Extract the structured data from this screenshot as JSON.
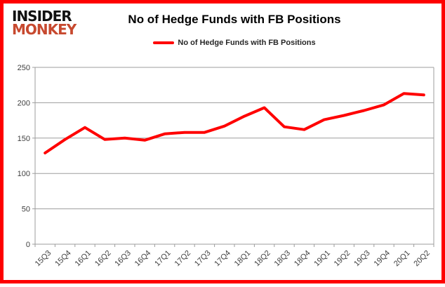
{
  "branding": {
    "logo_line1": "INSIDER",
    "logo_line2": "MONKEY",
    "logo_color_primary": "#111111",
    "logo_color_secondary": "#c7492f"
  },
  "title": "No of Hedge Funds with FB Positions",
  "legend": {
    "label": "No of Hedge Funds with FB Positions",
    "swatch_color": "#ff0000"
  },
  "colors": {
    "frame_border": "#fe0000",
    "line": "#ff0000",
    "grid": "#9d9d9d",
    "axis": "#9d9d9d",
    "tick_label": "#3f3f3f"
  },
  "chart_data": {
    "type": "line",
    "title": "No of Hedge Funds with FB Positions",
    "categories": [
      "15Q3",
      "15Q4",
      "16Q1",
      "16Q2",
      "16Q3",
      "16Q4",
      "17Q1",
      "17Q2",
      "17Q3",
      "17Q4",
      "18Q1",
      "18Q2",
      "18Q3",
      "18Q4",
      "19Q1",
      "19Q2",
      "19Q3",
      "19Q4",
      "20Q1",
      "20Q2"
    ],
    "series": [
      {
        "name": "No of Hedge Funds with FB Positions",
        "values": [
          129,
          148,
          165,
          148,
          150,
          147,
          156,
          158,
          158,
          167,
          181,
          193,
          166,
          162,
          176,
          182,
          189,
          197,
          213,
          211
        ]
      }
    ],
    "xlabel": "",
    "ylabel": "",
    "ylim": [
      0,
      250
    ],
    "ytick_step": 50,
    "grid": "horizontal",
    "legend_position": "top",
    "line_width": 4,
    "line_color": "#ff0000",
    "markers": false
  }
}
